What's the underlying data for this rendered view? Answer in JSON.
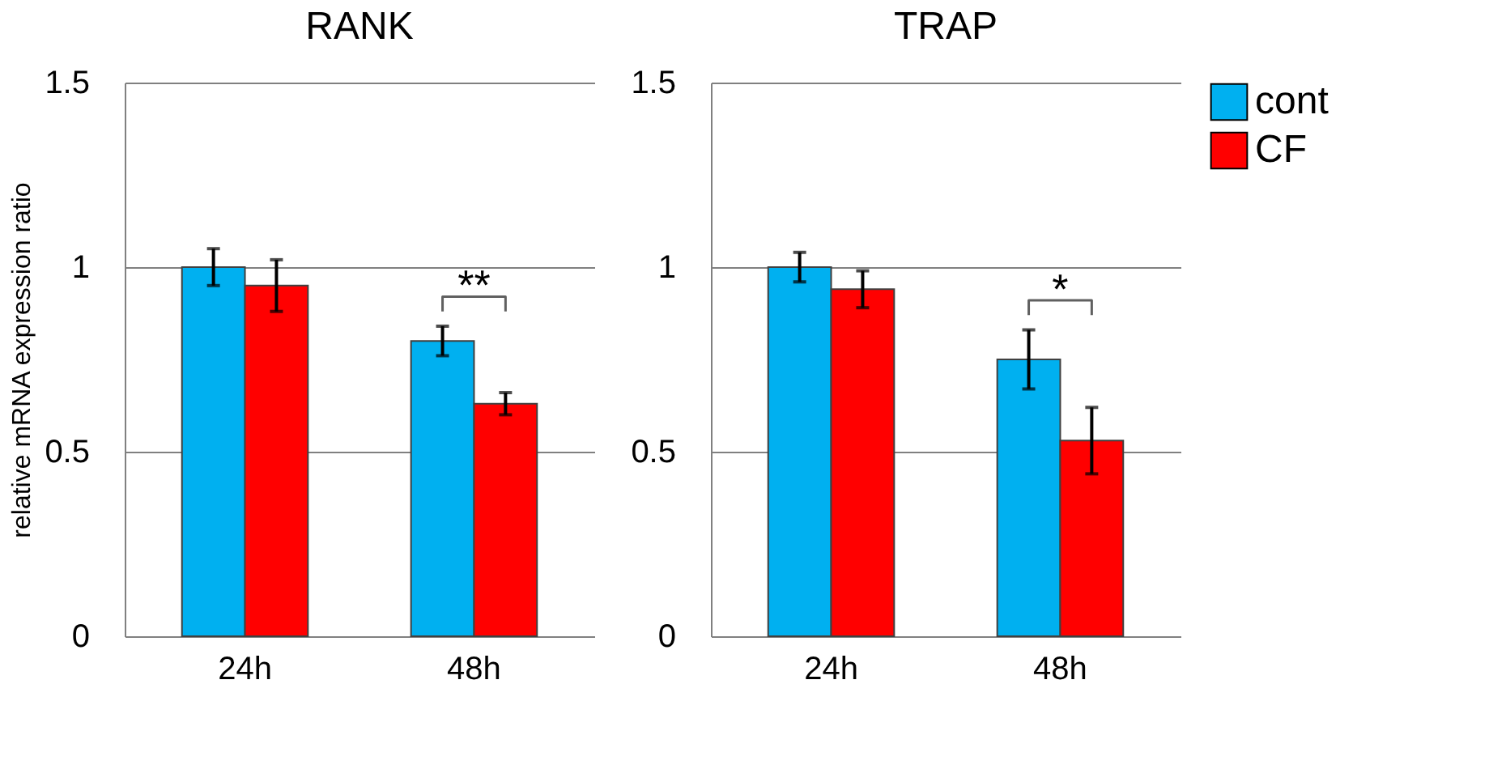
{
  "chart_data": [
    {
      "type": "bar",
      "title": "RANK",
      "ylabel": "relative mRNA expression ratio",
      "categories": [
        "24h",
        "48h"
      ],
      "series": [
        {
          "name": "cont",
          "color": "#00b0f0",
          "values": [
            1.0,
            0.8
          ],
          "errors": [
            0.05,
            0.04
          ]
        },
        {
          "name": "CF",
          "color": "#ff0000",
          "values": [
            0.95,
            0.63
          ],
          "errors": [
            0.07,
            0.03
          ]
        }
      ],
      "ylim": [
        0,
        1.5
      ],
      "yticks": [
        0,
        0.5,
        {
          "value": 1,
          "label": "1"
        },
        1.5
      ],
      "grid": "y",
      "legend": "right",
      "annotations": [
        "**"
      ]
    },
    {
      "type": "bar",
      "title": "TRAP",
      "categories": [
        "24h",
        "48h"
      ],
      "series": [
        {
          "name": "cont",
          "color": "#00b0f0",
          "values": [
            1.0,
            0.75
          ],
          "errors": [
            0.04,
            0.08
          ]
        },
        {
          "name": "CF",
          "color": "#ff0000",
          "values": [
            0.94,
            0.53
          ],
          "errors": [
            0.05,
            0.09
          ]
        }
      ],
      "ylim": [
        0,
        1.5
      ],
      "yticks": [
        0,
        0.5,
        {
          "value": 1,
          "label": "1"
        },
        1.5
      ],
      "grid": "y",
      "legend": "right",
      "annotations": [
        "*"
      ]
    }
  ]
}
